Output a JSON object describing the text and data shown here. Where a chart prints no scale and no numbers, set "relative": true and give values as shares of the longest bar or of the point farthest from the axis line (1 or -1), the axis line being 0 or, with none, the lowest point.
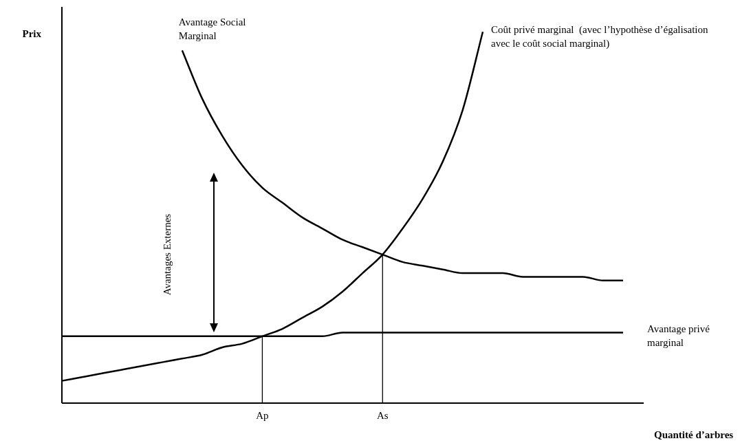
{
  "chart_data": {
    "type": "line",
    "relative": true,
    "xlabel": "Quantité d’arbres",
    "ylabel": "Prix",
    "categories": [
      null,
      null,
      null,
      null,
      null,
      null,
      null,
      null,
      null,
      null,
      "Ap",
      null,
      null,
      null,
      null,
      null,
      "As",
      null,
      null,
      null,
      null,
      null,
      null,
      null,
      null,
      null,
      null,
      null,
      null
    ],
    "series": [
      {
        "name": "Avantage Social Marginal",
        "color": "#000000",
        "values": [
          null,
          null,
          null,
          null,
          null,
          null,
          0.95,
          0.82,
          0.72,
          0.64,
          0.58,
          0.54,
          0.5,
          0.47,
          0.44,
          0.42,
          0.4,
          0.38,
          0.37,
          0.36,
          0.35,
          0.35,
          0.35,
          0.34,
          0.34,
          0.34,
          0.34,
          0.33,
          0.33
        ]
      },
      {
        "name": "Coût privé marginal  (avec l’hypothèse d’égalisation avec le coût social marginal)",
        "color": "#000000",
        "values": [
          0.06,
          0.07,
          0.08,
          0.09,
          0.1,
          0.11,
          0.12,
          0.13,
          0.15,
          0.16,
          0.18,
          0.2,
          0.23,
          0.26,
          0.3,
          0.35,
          0.4,
          0.47,
          0.55,
          0.65,
          0.79,
          1.0,
          null,
          null,
          null,
          null,
          null,
          null,
          null
        ]
      },
      {
        "name": "Avantage privé marginal",
        "color": "#000000",
        "values": [
          0.18,
          0.18,
          0.18,
          0.18,
          0.18,
          0.18,
          0.18,
          0.18,
          0.18,
          0.18,
          0.18,
          0.18,
          0.18,
          0.18,
          0.19,
          0.19,
          0.19,
          0.19,
          0.19,
          0.19,
          0.19,
          0.19,
          0.19,
          0.19,
          0.19,
          0.19,
          0.19,
          0.19,
          0.19
        ]
      },
      {
        "color": "#000000",
        "x": [
          "Ap",
          "Ap"
        ],
        "values": [
          0,
          0.18
        ]
      },
      {
        "color": "#000000",
        "x": [
          "As",
          "As"
        ],
        "values": [
          0,
          0.4
        ]
      }
    ],
    "annotations": [
      "Avantages Externes"
    ],
    "legend": false,
    "grid": false,
    "marker": "none",
    "line_style": "solid"
  }
}
